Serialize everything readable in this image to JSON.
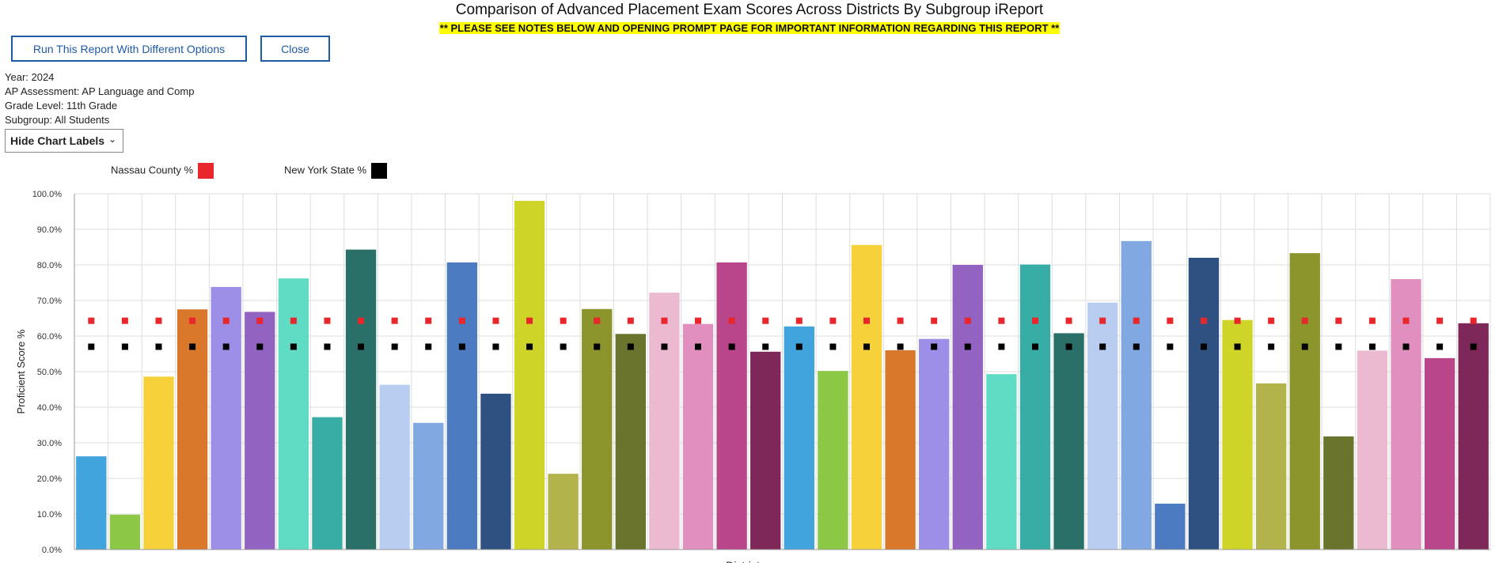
{
  "header": {
    "title": "Comparison of Advanced Placement Exam Scores Across Districts By Subgroup iReport",
    "note": "** PLEASE SEE NOTES BELOW AND OPENING PROMPT PAGE FOR IMPORTANT INFORMATION REGARDING THIS REPORT **"
  },
  "buttons": {
    "run": "Run This Report With Different Options",
    "close": "Close"
  },
  "filters": {
    "year": "Year: 2024",
    "assessment": "AP Assessment: AP Language and Comp",
    "grade": "Grade Level: 11th Grade",
    "subgroup": "Subgroup:  All Students"
  },
  "labels_toggle": "Hide Chart Labels",
  "legend": [
    {
      "label": "Nassau County %",
      "color": "#e8262b"
    },
    {
      "label": "New York State %",
      "color": "#000000"
    }
  ],
  "colors": {
    "palette": [
      "#42a4dc",
      "#8cc846",
      "#f7d13a",
      "#d9772b",
      "#9d8ee8",
      "#9263c0",
      "#5fdcc3",
      "#38ada5",
      "#2a7069",
      "#b9cdf0",
      "#82a8e2",
      "#4d7bc2",
      "#2f5182",
      "#cfd528",
      "#b2b44b",
      "#8b952b",
      "#6a742c",
      "#ebbad0",
      "#e18fbf",
      "#b9458a",
      "#7d2858"
    ],
    "nassau": "#e8262b",
    "nys": "#000000",
    "grid": "#dddddd"
  },
  "chart_data": {
    "type": "bar",
    "xlabel": "District",
    "ylabel": "Proficient Score %",
    "ylim": [
      0,
      100
    ],
    "yticks": [
      0,
      10,
      20,
      30,
      40,
      50,
      60,
      70,
      80,
      90,
      100
    ],
    "ytick_labels": [
      "0.0%",
      "10.0%",
      "20.0%",
      "30.0%",
      "40.0%",
      "50.0%",
      "60.0%",
      "70.0%",
      "80.0%",
      "90.0%",
      "100.0%"
    ],
    "grid": true,
    "legend_position": "top-left",
    "values": [
      26.2,
      9.8,
      48.6,
      67.5,
      73.8,
      66.8,
      76.2,
      37.2,
      84.3,
      46.3,
      35.6,
      80.7,
      43.8,
      98.0,
      21.3,
      67.6,
      60.6,
      72.2,
      63.4,
      80.7,
      55.6,
      62.7,
      50.2,
      85.6,
      56.0,
      59.2,
      80.0,
      49.3,
      80.1,
      60.8,
      69.4,
      86.7,
      12.9,
      82.0,
      64.5,
      46.7,
      83.3,
      31.8,
      55.9,
      76.0,
      53.8,
      63.6
    ],
    "series": [
      {
        "name": "Nassau County %",
        "value": 64.3
      },
      {
        "name": "New York State %",
        "value": 57.0
      }
    ]
  }
}
